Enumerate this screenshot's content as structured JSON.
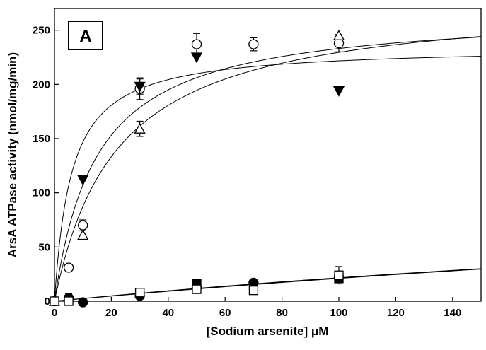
{
  "chart_data": {
    "type": "scatter",
    "panel_label": "A",
    "xlabel": "[Sodium arsenite] μM",
    "ylabel": "ArsA ATPase activity (nmol/mg/min)",
    "xlim": [
      0,
      150
    ],
    "ylim": [
      0,
      270
    ],
    "xticks": [
      0,
      20,
      40,
      60,
      80,
      100,
      120,
      140
    ],
    "yticks": [
      0,
      50,
      100,
      150,
      200,
      250
    ],
    "grid": false,
    "legend": "none",
    "series": [
      {
        "marker": "open-circle",
        "points": [
          {
            "x": 0,
            "y": 0,
            "err": 0
          },
          {
            "x": 5,
            "y": 31,
            "err": 3
          },
          {
            "x": 10,
            "y": 70,
            "err": 5
          },
          {
            "x": 30,
            "y": 196,
            "err": 10
          },
          {
            "x": 50,
            "y": 237,
            "err": 10
          },
          {
            "x": 70,
            "y": 237,
            "err": 6
          },
          {
            "x": 100,
            "y": 238,
            "err": 8
          }
        ]
      },
      {
        "marker": "open-triangle-up",
        "points": [
          {
            "x": 0,
            "y": 0,
            "err": 0
          },
          {
            "x": 10,
            "y": 61,
            "err": 0
          },
          {
            "x": 30,
            "y": 159,
            "err": 7
          },
          {
            "x": 100,
            "y": 245,
            "err": 0
          }
        ]
      },
      {
        "marker": "filled-triangle-down",
        "points": [
          {
            "x": 10,
            "y": 112,
            "err": 0
          },
          {
            "x": 30,
            "y": 198,
            "err": 7
          },
          {
            "x": 50,
            "y": 225,
            "err": 0
          },
          {
            "x": 100,
            "y": 194,
            "err": 0
          }
        ]
      },
      {
        "marker": "filled-circle",
        "points": [
          {
            "x": 0,
            "y": 0,
            "err": 0
          },
          {
            "x": 5,
            "y": 3,
            "err": 4
          },
          {
            "x": 10,
            "y": -1,
            "err": 0
          },
          {
            "x": 30,
            "y": 5,
            "err": 0
          },
          {
            "x": 50,
            "y": 13,
            "err": 0
          },
          {
            "x": 70,
            "y": 17,
            "err": 0
          },
          {
            "x": 100,
            "y": 22,
            "err": 0
          }
        ]
      },
      {
        "marker": "filled-square",
        "points": [
          {
            "x": 30,
            "y": 8,
            "err": 0
          },
          {
            "x": 50,
            "y": 16,
            "err": 0
          },
          {
            "x": 100,
            "y": 21,
            "err": 0
          }
        ]
      },
      {
        "marker": "open-square",
        "points": [
          {
            "x": 0,
            "y": 0,
            "err": 0
          },
          {
            "x": 5,
            "y": 0,
            "err": 0
          },
          {
            "x": 30,
            "y": 8,
            "err": 0
          },
          {
            "x": 50,
            "y": 11,
            "err": 0
          },
          {
            "x": 70,
            "y": 10,
            "err": 0
          },
          {
            "x": 100,
            "y": 24,
            "err": 8
          }
        ]
      }
    ],
    "fitted_curves": [
      {
        "model": "michaelis-menten",
        "vmax": 235,
        "km": 6
      },
      {
        "model": "michaelis-menten",
        "vmax": 268,
        "km": 15
      },
      {
        "model": "michaelis-menten",
        "vmax": 280,
        "km": 22
      },
      {
        "model": "michaelis-menten",
        "vmax": 150,
        "km": 600
      },
      {
        "model": "michaelis-menten",
        "vmax": 130,
        "km": 500
      },
      {
        "model": "michaelis-menten",
        "vmax": 160,
        "km": 660
      }
    ],
    "colors": {
      "ink": "#000000",
      "background": "#ffffff"
    }
  }
}
